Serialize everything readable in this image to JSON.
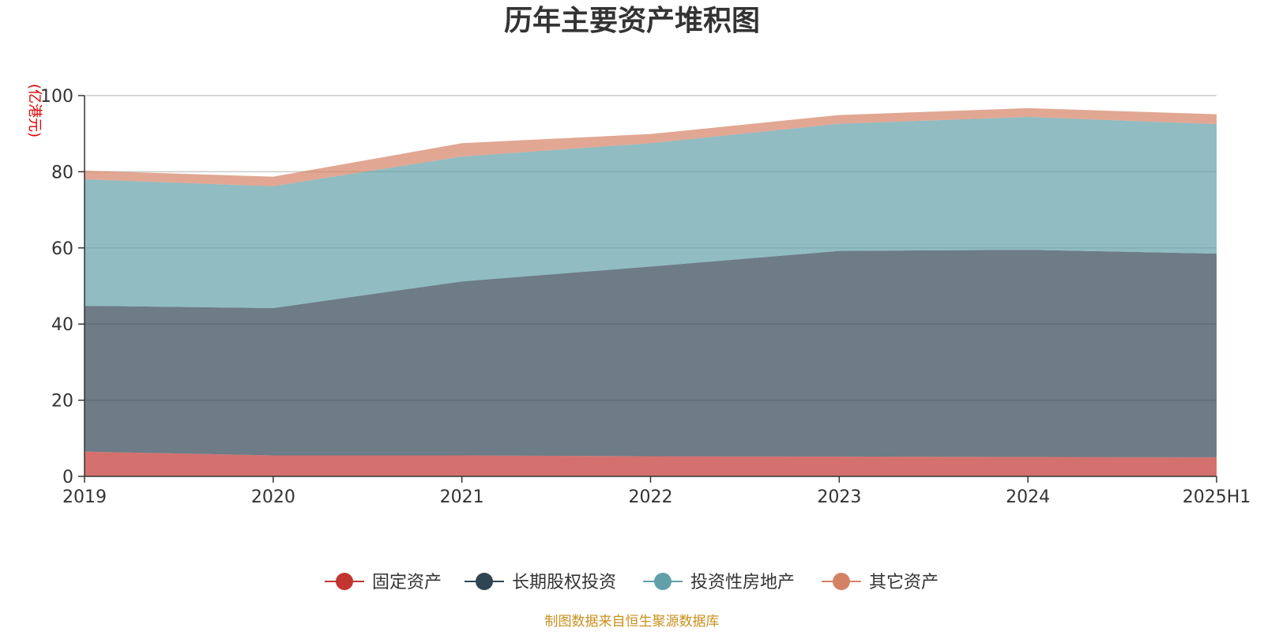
{
  "chart_data": {
    "type": "area",
    "stacked": true,
    "title": "历年主要资产堆积图",
    "unit_label": "(亿港元)",
    "categories": [
      "2019",
      "2020",
      "2021",
      "2022",
      "2023",
      "2024",
      "2025H1"
    ],
    "ylim": [
      0,
      100
    ],
    "yticks": [
      "0",
      "20",
      "40",
      "60",
      "80",
      "100"
    ],
    "grid": true,
    "legend_position": "bottom",
    "series": [
      {
        "name": "固定资产",
        "color": "#c23531",
        "values": [
          6.5,
          5.5,
          5.5,
          5.3,
          5.2,
          5.1,
          5.0
        ]
      },
      {
        "name": "长期股权投资",
        "color": "#2f4554",
        "values": [
          38.3,
          38.7,
          45.7,
          49.8,
          54.0,
          54.4,
          53.5
        ]
      },
      {
        "name": "投资性房地产",
        "color": "#61a0a8",
        "values": [
          33.2,
          32.0,
          32.8,
          32.4,
          33.4,
          34.9,
          34.0
        ]
      },
      {
        "name": "其它资产",
        "color": "#d48265",
        "values": [
          2.3,
          2.5,
          3.5,
          2.4,
          2.3,
          2.3,
          2.6
        ]
      }
    ],
    "source": "制图数据来自恒生聚源数据库"
  }
}
